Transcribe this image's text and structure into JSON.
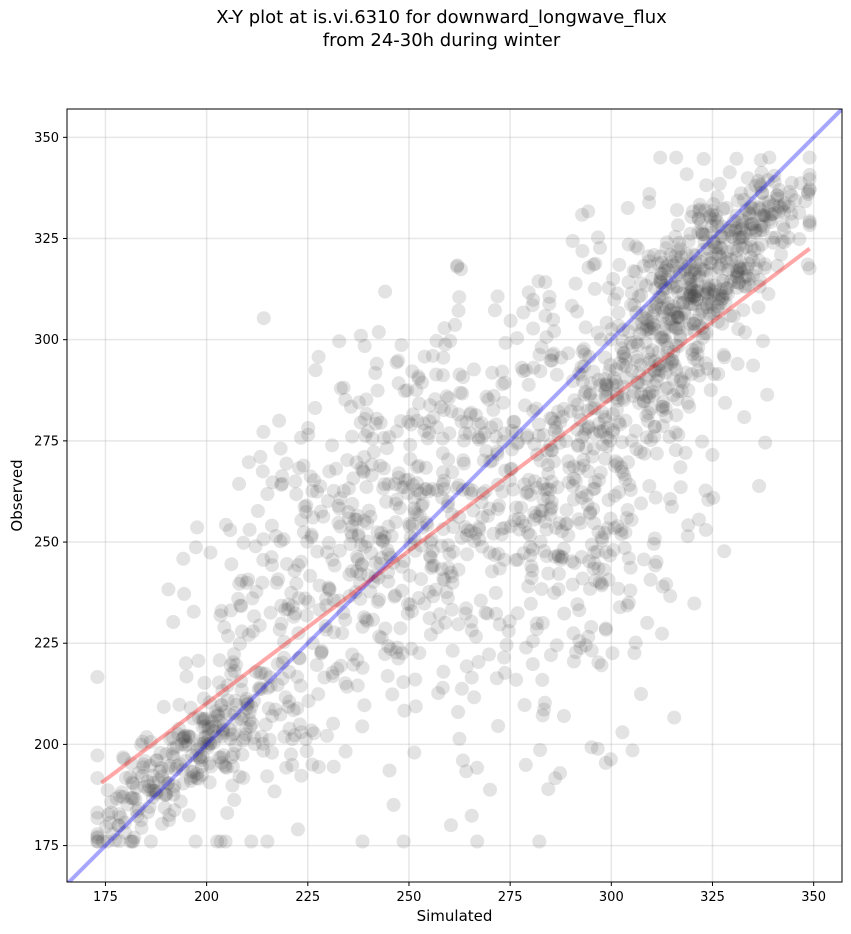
{
  "title_line1": "X-Y plot at is.vi.6310 for downward_longwave_flux",
  "title_line2": "from 24-30h during winter",
  "chart_data": {
    "type": "scatter",
    "title": "X-Y plot at is.vi.6310 for downward_longwave_flux\nfrom 24-30h during winter",
    "xlabel": "Simulated",
    "ylabel": "Observed",
    "xlim": [
      165.5,
      357
    ],
    "ylim": [
      166,
      357
    ],
    "xticks": [
      175,
      200,
      225,
      250,
      275,
      300,
      325,
      350
    ],
    "yticks": [
      175,
      200,
      225,
      250,
      275,
      300,
      325,
      350
    ],
    "grid": true,
    "point_color": "#404040",
    "point_alpha": 0.15,
    "lines": [
      {
        "kind": "one-to-one",
        "color": "#0000ff",
        "x": [
          165.5,
          357
        ],
        "y": [
          165.5,
          357
        ]
      },
      {
        "kind": "regression",
        "color": "#ff0000",
        "x": [
          174,
          349
        ],
        "y": [
          190.5,
          322.5
        ]
      }
    ],
    "clusters": [
      {
        "center": [
          184,
          187
        ],
        "spread": [
          7,
          7
        ],
        "count": 80,
        "corr": 0.7
      },
      {
        "center": [
          200,
          201
        ],
        "spread": [
          9,
          8
        ],
        "count": 140,
        "corr": 0.6
      },
      {
        "center": [
          222,
          232
        ],
        "spread": [
          18,
          28
        ],
        "count": 260,
        "corr": 0.5
      },
      {
        "center": [
          250,
          255
        ],
        "spread": [
          20,
          26
        ],
        "count": 300,
        "corr": 0.4
      },
      {
        "center": [
          276,
          262
        ],
        "spread": [
          20,
          30
        ],
        "count": 280,
        "corr": 0.3
      },
      {
        "center": [
          300,
          262
        ],
        "spread": [
          14,
          30
        ],
        "count": 260,
        "corr": 0.4
      },
      {
        "center": [
          315,
          305
        ],
        "spread": [
          12,
          16
        ],
        "count": 320,
        "corr": 0.6
      },
      {
        "center": [
          325,
          318
        ],
        "spread": [
          10,
          12
        ],
        "count": 180,
        "corr": 0.6
      },
      {
        "center": [
          340,
          333
        ],
        "spread": [
          6,
          6
        ],
        "count": 60,
        "corr": 0.5
      }
    ]
  }
}
